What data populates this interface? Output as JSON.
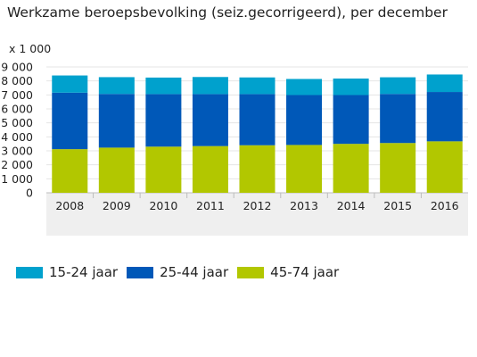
{
  "chart_data": {
    "type": "bar",
    "stacked": true,
    "title": "Werkzame beroepsbevolking (seiz.gecorrigeerd), per december",
    "unit_label": "x 1 000",
    "categories": [
      "2008",
      "2009",
      "2010",
      "2011",
      "2012",
      "2013",
      "2014",
      "2015",
      "2016"
    ],
    "series": [
      {
        "name": "45-74 jaar",
        "color": "#b2c700",
        "values": [
          3120,
          3230,
          3300,
          3340,
          3400,
          3420,
          3500,
          3560,
          3680
        ]
      },
      {
        "name": "25-44 jaar",
        "color": "#0058b8",
        "values": [
          4040,
          3840,
          3760,
          3720,
          3660,
          3570,
          3490,
          3510,
          3530
        ]
      },
      {
        "name": "15-24 jaar",
        "color": "#00a1cd",
        "values": [
          1230,
          1200,
          1180,
          1220,
          1190,
          1150,
          1180,
          1190,
          1250
        ]
      }
    ],
    "yticks": [
      "0",
      "1 000",
      "2 000",
      "3 000",
      "4 000",
      "5 000",
      "6 000",
      "7 000",
      "8 000",
      "9 000"
    ],
    "ylim": [
      0,
      9000
    ],
    "legend_position": "bottom-left",
    "legend_order": [
      2,
      1,
      0
    ]
  }
}
